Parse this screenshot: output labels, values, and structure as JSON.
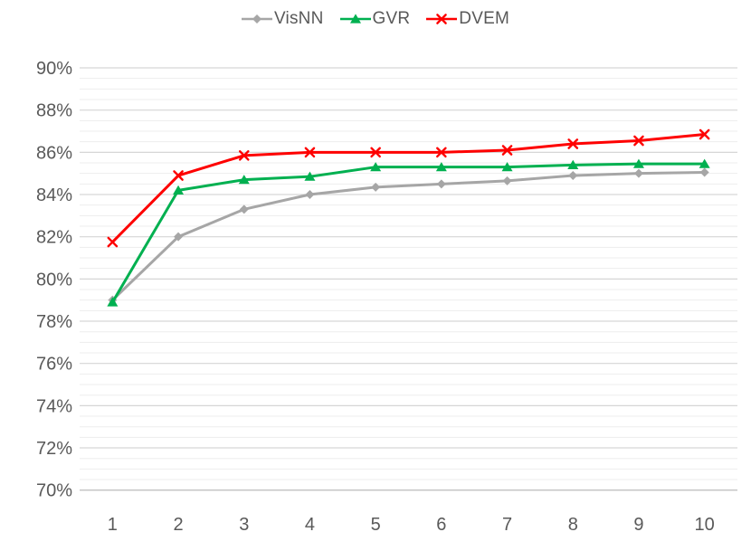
{
  "chart_data": {
    "type": "line",
    "title": "",
    "xlabel": "",
    "ylabel": "",
    "x": [
      1,
      2,
      3,
      4,
      5,
      6,
      7,
      8,
      9,
      10
    ],
    "x_tick_labels": [
      "1",
      "2",
      "3",
      "4",
      "5",
      "6",
      "7",
      "8",
      "9",
      "10"
    ],
    "y_tick_labels": [
      "90%",
      "88%",
      "86%",
      "84%",
      "82%",
      "80%",
      "78%",
      "76%",
      "74%",
      "72%",
      "70%"
    ],
    "ylim": [
      70,
      90
    ],
    "y_major_step": 2,
    "y_minor_step": 0.5,
    "y_unit": "%",
    "grid": "horizontal major and minor gridlines, no vertical grid",
    "legend_position": "top-center",
    "series": [
      {
        "name": "VisNN",
        "color": "#a6a6a6",
        "marker": "diamond",
        "values": [
          79.0,
          82.0,
          83.3,
          84.0,
          84.35,
          84.5,
          84.65,
          84.9,
          85.0,
          85.05
        ]
      },
      {
        "name": "GVR",
        "color": "#00b050",
        "marker": "triangle",
        "values": [
          78.9,
          84.2,
          84.7,
          84.85,
          85.3,
          85.3,
          85.3,
          85.4,
          85.45,
          85.45
        ]
      },
      {
        "name": "DVEM",
        "color": "#fe0000",
        "marker": "x",
        "values": [
          81.75,
          84.9,
          85.85,
          86.0,
          86.0,
          86.0,
          86.1,
          86.4,
          86.55,
          86.85
        ]
      }
    ],
    "colors": {
      "axis_label": "#595959",
      "legend_text": "#595959",
      "gridline_major": "#d6d6d6",
      "gridline_minor": "#ededed",
      "axis_line": "#c3c3c3",
      "background": "#ffffff"
    }
  }
}
